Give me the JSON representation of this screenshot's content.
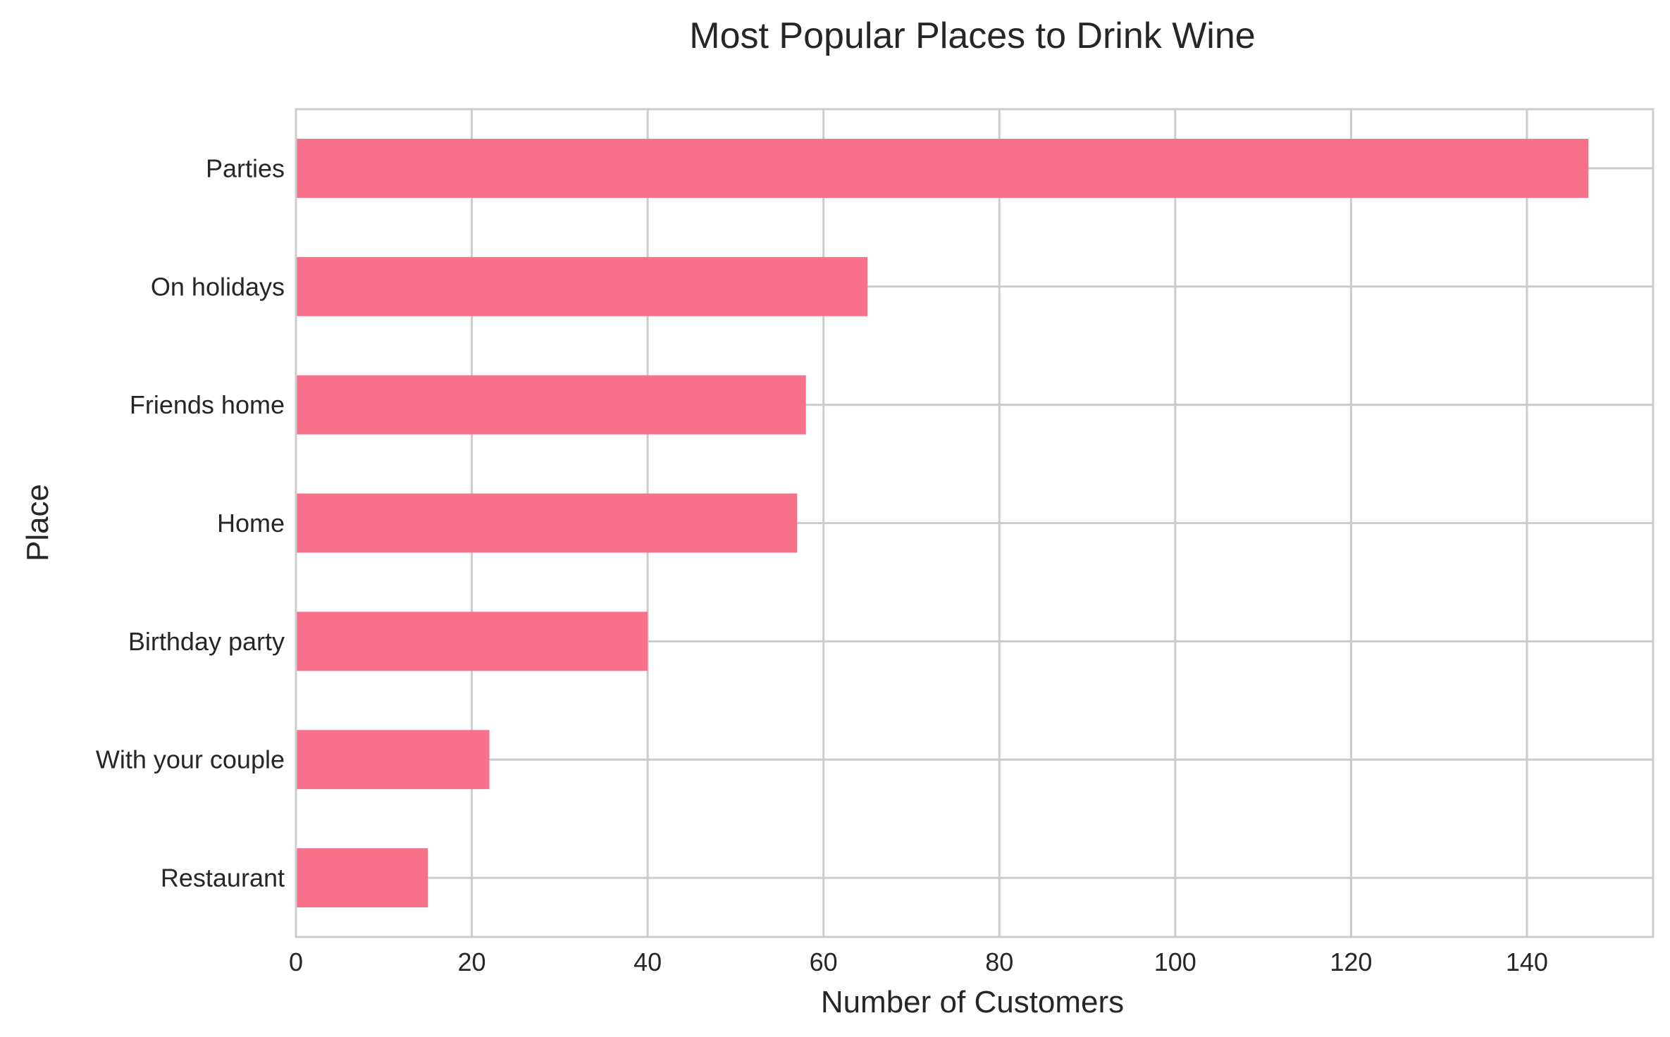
{
  "chart_data": {
    "type": "bar",
    "orientation": "horizontal",
    "title": "Most Popular Places to Drink Wine",
    "xlabel": "Number of Customers",
    "ylabel": "Place",
    "categories": [
      "Parties",
      "On holidays",
      "Friends home",
      "Home",
      "Birthday party",
      "With your couple",
      "Restaurant"
    ],
    "values": [
      147,
      65,
      58,
      57,
      40,
      22,
      15
    ],
    "xlim": [
      0,
      154.35
    ],
    "xticks": [
      0,
      20,
      40,
      60,
      80,
      100,
      120,
      140
    ],
    "xtick_labels": [
      "0",
      "20",
      "40",
      "60",
      "80",
      "100",
      "120",
      "140"
    ],
    "grid": true,
    "bar_color": "#f7718a",
    "grid_color": "#cccccc",
    "text_color": "#262626"
  }
}
